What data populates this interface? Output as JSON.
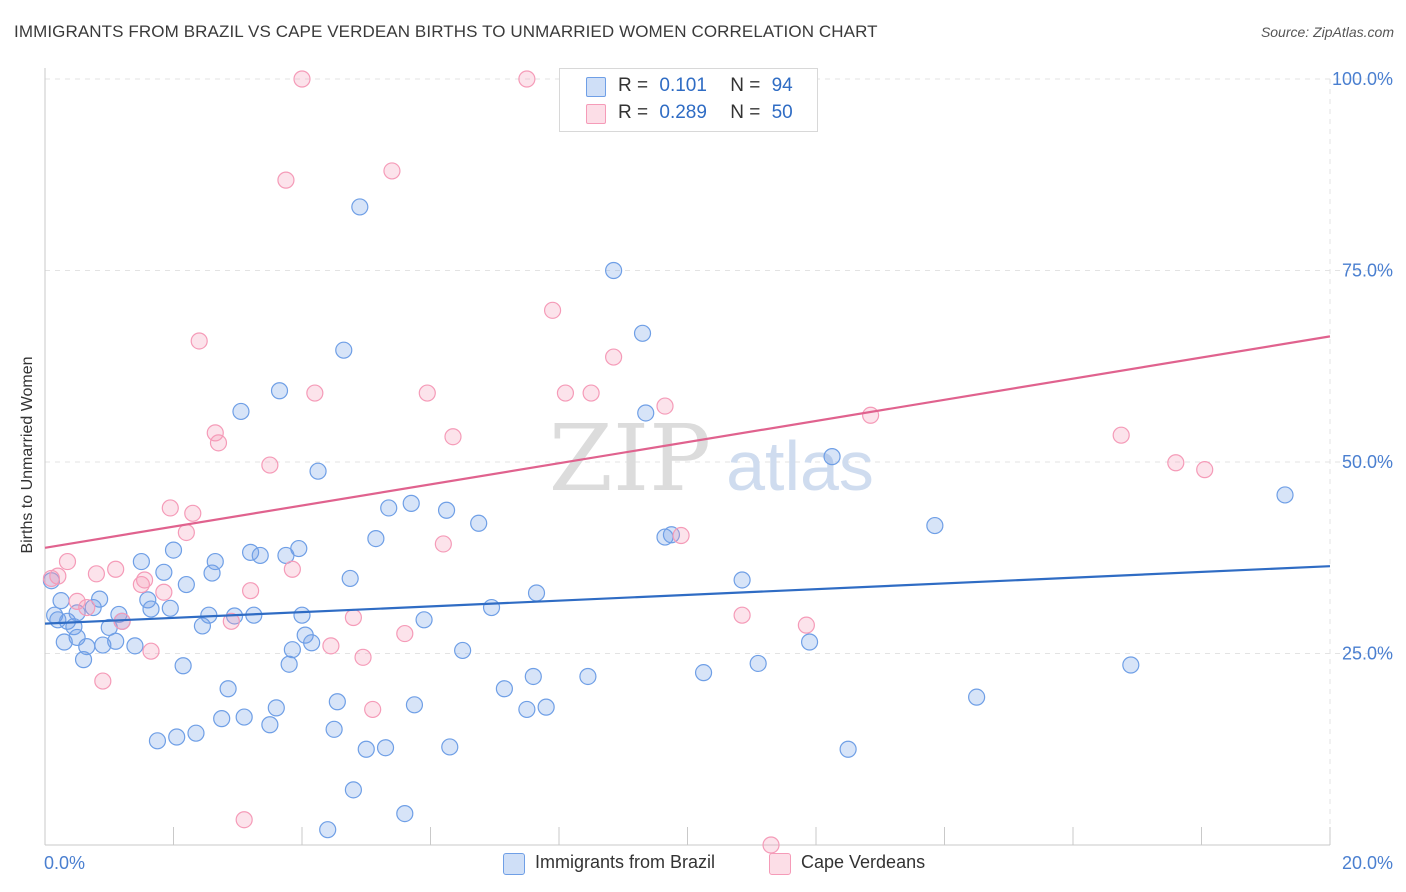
{
  "header": {
    "title": "IMMIGRANTS FROM BRAZIL VS CAPE VERDEAN BIRTHS TO UNMARRIED WOMEN CORRELATION CHART",
    "source": "Source: ZipAtlas.com"
  },
  "watermark": {
    "zip": "ZIP",
    "atlas": "atlas"
  },
  "legend": {
    "rows": [
      {
        "r_label": "R =",
        "r_value": "0.101",
        "n_label": "N =",
        "n_value": "94",
        "color": "#6f9fe6"
      },
      {
        "r_label": "R =",
        "r_value": "0.289",
        "n_label": "N =",
        "n_value": "50",
        "color": "#f59bb8"
      }
    ]
  },
  "bottom_legend": {
    "items": [
      {
        "label": "Immigrants from Brazil",
        "color": "#6f9fe6"
      },
      {
        "label": "Cape Verdeans",
        "color": "#f59bb8"
      }
    ]
  },
  "chart_data": {
    "type": "scatter",
    "title": "IMMIGRANTS FROM BRAZIL VS CAPE VERDEAN BIRTHS TO UNMARRIED WOMEN CORRELATION CHART",
    "xlabel": "",
    "ylabel": "Births to Unmarried Women",
    "xlim": [
      0,
      20
    ],
    "ylim": [
      0,
      100
    ],
    "x_tick_labels": [
      "0.0%",
      "20.0%"
    ],
    "y_ticks": [
      25,
      50,
      75,
      100
    ],
    "y_tick_labels": [
      "25.0%",
      "50.0%",
      "75.0%",
      "100.0%"
    ],
    "grid": true,
    "series": [
      {
        "name": "Immigrants from Brazil",
        "color": "#6f9fe6",
        "line_color": "#2f6cc4",
        "trend": {
          "x0": 0,
          "y0": 28.9,
          "x1": 20,
          "y1": 36.4
        },
        "points": [
          [
            0.1,
            34.5
          ],
          [
            0.15,
            30
          ],
          [
            0.2,
            29.4
          ],
          [
            0.25,
            31.9
          ],
          [
            0.3,
            26.5
          ],
          [
            0.35,
            29.2
          ],
          [
            0.45,
            28.5
          ],
          [
            0.5,
            27.1
          ],
          [
            0.6,
            24.2
          ],
          [
            0.65,
            25.9
          ],
          [
            0.75,
            31.0
          ],
          [
            0.85,
            32.1
          ],
          [
            0.9,
            26.1
          ],
          [
            1.0,
            28.4
          ],
          [
            1.1,
            26.6
          ],
          [
            1.15,
            30.1
          ],
          [
            1.2,
            29.2
          ],
          [
            1.4,
            26.0
          ],
          [
            1.5,
            37.0
          ],
          [
            1.6,
            32.0
          ],
          [
            1.65,
            30.8
          ],
          [
            1.75,
            13.6
          ],
          [
            1.85,
            35.6
          ],
          [
            1.95,
            30.9
          ],
          [
            2.0,
            38.5
          ],
          [
            2.05,
            14.1
          ],
          [
            2.15,
            23.4
          ],
          [
            2.2,
            34.0
          ],
          [
            2.35,
            14.6
          ],
          [
            2.45,
            28.6
          ],
          [
            2.55,
            30.0
          ],
          [
            2.6,
            35.5
          ],
          [
            2.65,
            37.0
          ],
          [
            2.85,
            20.4
          ],
          [
            2.95,
            29.9
          ],
          [
            2.75,
            16.5
          ],
          [
            3.05,
            56.6
          ],
          [
            3.1,
            16.7
          ],
          [
            3.2,
            38.2
          ],
          [
            3.25,
            30.0
          ],
          [
            3.35,
            37.8
          ],
          [
            3.5,
            15.7
          ],
          [
            3.6,
            17.9
          ],
          [
            3.65,
            59.3
          ],
          [
            3.75,
            37.8
          ],
          [
            3.8,
            23.6
          ],
          [
            3.85,
            25.5
          ],
          [
            3.95,
            38.7
          ],
          [
            4.0,
            30.0
          ],
          [
            4.05,
            27.4
          ],
          [
            4.15,
            26.4
          ],
          [
            4.25,
            48.8
          ],
          [
            4.4,
            2.0
          ],
          [
            4.5,
            15.1
          ],
          [
            4.55,
            18.7
          ],
          [
            4.65,
            64.6
          ],
          [
            4.75,
            34.8
          ],
          [
            4.8,
            7.2
          ],
          [
            4.9,
            83.3
          ],
          [
            5.0,
            12.5
          ],
          [
            5.15,
            40.0
          ],
          [
            5.3,
            12.7
          ],
          [
            5.35,
            44.0
          ],
          [
            5.6,
            4.1
          ],
          [
            5.7,
            44.6
          ],
          [
            5.75,
            18.3
          ],
          [
            5.9,
            29.4
          ],
          [
            6.25,
            43.7
          ],
          [
            6.3,
            12.8
          ],
          [
            6.5,
            25.4
          ],
          [
            6.75,
            42.0
          ],
          [
            6.95,
            31.0
          ],
          [
            7.15,
            20.4
          ],
          [
            7.5,
            17.7
          ],
          [
            7.6,
            22.0
          ],
          [
            7.8,
            18.0
          ],
          [
            7.65,
            32.9
          ],
          [
            8.45,
            22.0
          ],
          [
            8.85,
            75.0
          ],
          [
            9.3,
            66.8
          ],
          [
            9.65,
            40.2
          ],
          [
            9.75,
            40.5
          ],
          [
            9.35,
            56.4
          ],
          [
            10.25,
            22.5
          ],
          [
            10.85,
            34.6
          ],
          [
            11.1,
            23.7
          ],
          [
            11.9,
            26.5
          ],
          [
            12.25,
            50.7
          ],
          [
            12.5,
            12.5
          ],
          [
            13.85,
            41.7
          ],
          [
            14.5,
            19.3
          ],
          [
            16.9,
            23.5
          ],
          [
            19.3,
            45.7
          ],
          [
            0.5,
            30.3
          ]
        ]
      },
      {
        "name": "Cape Verdeans",
        "color": "#f59bb8",
        "line_color": "#e0628e",
        "trend": {
          "x0": 0,
          "y0": 38.8,
          "x1": 20,
          "y1": 66.4
        },
        "points": [
          [
            0.1,
            34.8
          ],
          [
            0.2,
            35.1
          ],
          [
            0.35,
            37.0
          ],
          [
            0.5,
            31.8
          ],
          [
            0.65,
            31.0
          ],
          [
            0.8,
            35.4
          ],
          [
            0.9,
            21.4
          ],
          [
            1.1,
            36.0
          ],
          [
            1.2,
            29.2
          ],
          [
            1.5,
            34.0
          ],
          [
            1.55,
            34.6
          ],
          [
            1.65,
            25.3
          ],
          [
            1.85,
            33.0
          ],
          [
            1.95,
            44.0
          ],
          [
            2.2,
            40.8
          ],
          [
            2.3,
            43.3
          ],
          [
            2.4,
            65.8
          ],
          [
            2.65,
            53.8
          ],
          [
            2.7,
            52.5
          ],
          [
            2.9,
            29.2
          ],
          [
            3.1,
            3.3
          ],
          [
            3.2,
            33.2
          ],
          [
            3.5,
            49.6
          ],
          [
            3.75,
            86.8
          ],
          [
            3.85,
            36.0
          ],
          [
            4.0,
            100
          ],
          [
            4.2,
            59.0
          ],
          [
            4.45,
            26.0
          ],
          [
            4.8,
            29.7
          ],
          [
            4.95,
            24.5
          ],
          [
            5.1,
            17.7
          ],
          [
            5.4,
            88.0
          ],
          [
            5.6,
            27.6
          ],
          [
            5.95,
            59.0
          ],
          [
            6.2,
            39.3
          ],
          [
            6.35,
            53.3
          ],
          [
            7.5,
            100
          ],
          [
            7.9,
            69.8
          ],
          [
            8.1,
            59.0
          ],
          [
            8.5,
            59.0
          ],
          [
            8.85,
            63.7
          ],
          [
            9.65,
            57.3
          ],
          [
            9.9,
            40.4
          ],
          [
            10.85,
            30.0
          ],
          [
            11.3,
            0
          ],
          [
            11.85,
            28.7
          ],
          [
            12.85,
            56.1
          ],
          [
            16.75,
            53.5
          ],
          [
            17.6,
            49.9
          ],
          [
            18.05,
            49.0
          ]
        ]
      }
    ]
  }
}
